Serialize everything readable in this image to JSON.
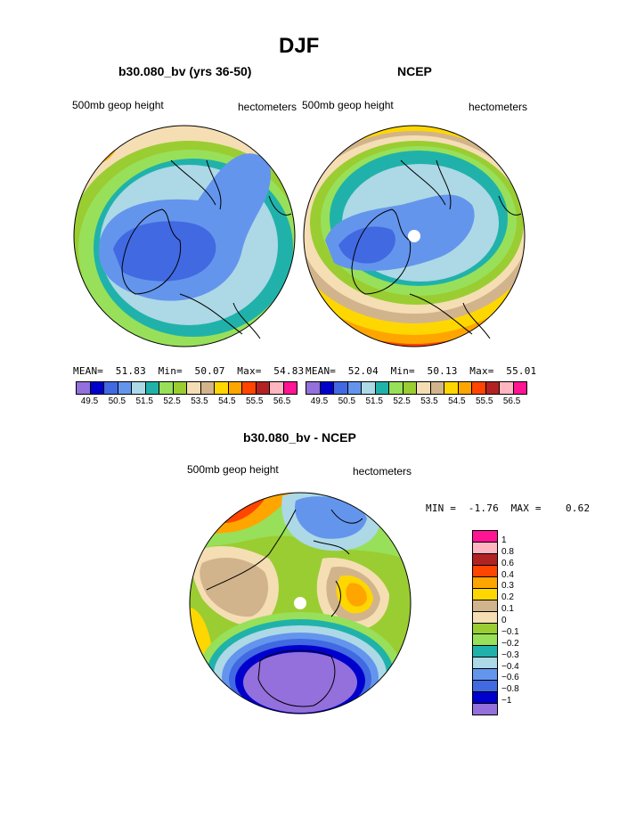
{
  "page_title": "DJF",
  "chart_data": [
    {
      "type": "contour-map",
      "title": "b30.080_bv (yrs 36-50)",
      "left_label": "500mb geop height",
      "right_label": "hectometers",
      "stats": {
        "mean_label": "MEAN=",
        "mean": "51.83",
        "min_label": "Min=",
        "min": "50.07",
        "max_label": "Max=",
        "max": "54.83"
      },
      "colorbar": {
        "colors": [
          "#9370db",
          "#0000cd",
          "#4169e1",
          "#6495ed",
          "#add8e6",
          "#20b2aa",
          "#98e05a",
          "#9acd32",
          "#f5deb3",
          "#d2b48c",
          "#ffd700",
          "#ffa500",
          "#ff4500",
          "#b22222",
          "#ffb6c1",
          "#ff1493"
        ],
        "tick_labels": [
          "49.5",
          "50.5",
          "51.5",
          "52.5",
          "53.5",
          "54.5",
          "55.5",
          "56.5"
        ]
      }
    },
    {
      "type": "contour-map",
      "title": "NCEP",
      "left_label": "500mb geop height",
      "right_label": "hectometers",
      "stats": {
        "mean_label": "MEAN=",
        "mean": "52.04",
        "min_label": "Min=",
        "min": "50.13",
        "max_label": "Max=",
        "max": "55.01"
      },
      "colorbar": {
        "colors": [
          "#9370db",
          "#0000cd",
          "#4169e1",
          "#6495ed",
          "#add8e6",
          "#20b2aa",
          "#98e05a",
          "#9acd32",
          "#f5deb3",
          "#d2b48c",
          "#ffd700",
          "#ffa500",
          "#ff4500",
          "#b22222",
          "#ffb6c1",
          "#ff1493"
        ],
        "tick_labels": [
          "49.5",
          "50.5",
          "51.5",
          "52.5",
          "53.5",
          "54.5",
          "55.5",
          "56.5"
        ]
      }
    },
    {
      "type": "contour-map",
      "title": "b30.080_bv - NCEP",
      "left_label": "500mb geop height",
      "right_label": "hectometers",
      "stats": {
        "min_label": "MIN =",
        "min": "-1.76",
        "max_label": "MAX =",
        "max": "0.62"
      },
      "colorbar": {
        "colors": [
          "#ff1493",
          "#ffb6c1",
          "#b22222",
          "#ff4500",
          "#ffa500",
          "#ffd700",
          "#d2b48c",
          "#f5deb3",
          "#9acd32",
          "#98e05a",
          "#20b2aa",
          "#add8e6",
          "#6495ed",
          "#4169e1",
          "#0000cd",
          "#9370db"
        ],
        "tick_labels": [
          "1",
          "0.8",
          "0.6",
          "0.4",
          "0.3",
          "0.2",
          "0.1",
          "0",
          "−0.1",
          "−0.2",
          "−0.3",
          "−0.4",
          "−0.6",
          "−0.8",
          "−1"
        ]
      }
    }
  ]
}
